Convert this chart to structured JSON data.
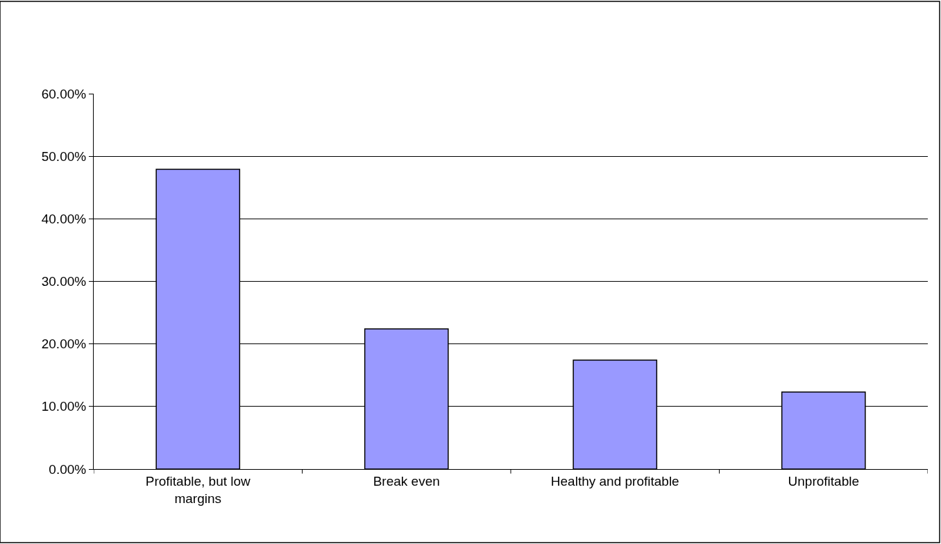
{
  "chart_data": {
    "type": "bar",
    "categories": [
      "Profitable, but low margins",
      "Break even",
      "Healthy and profitable",
      "Unprofitable"
    ],
    "values": [
      47.9,
      22.4,
      17.4,
      12.3
    ],
    "color": "#9999ff",
    "ylim": [
      0,
      60
    ],
    "yticks": [
      {
        "value": 0,
        "label": "0.00%"
      },
      {
        "value": 10,
        "label": "10.00%"
      },
      {
        "value": 20,
        "label": "20.00%"
      },
      {
        "value": 30,
        "label": "30.00%"
      },
      {
        "value": 40,
        "label": "40.00%"
      },
      {
        "value": 50,
        "label": "50.00%"
      },
      {
        "value": 60,
        "label": "60.00%"
      }
    ],
    "grid": "y"
  }
}
